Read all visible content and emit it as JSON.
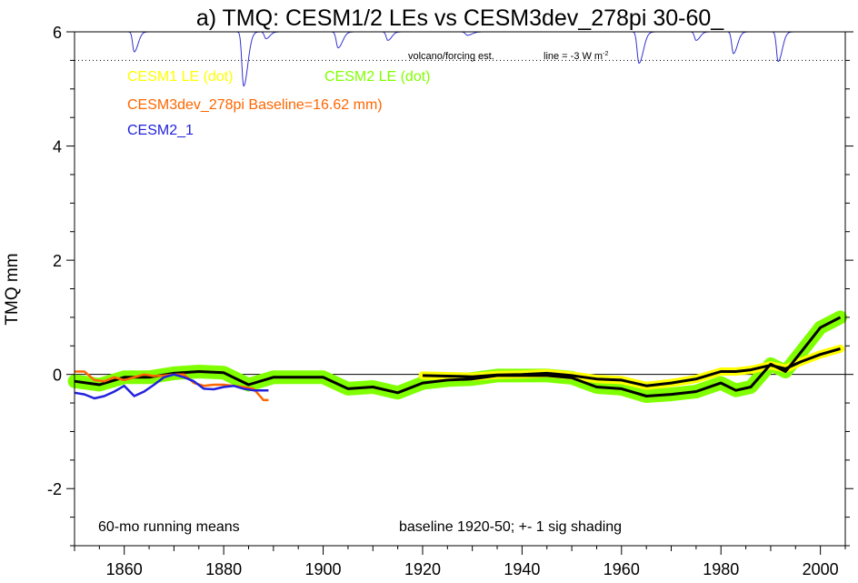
{
  "chart_data": {
    "type": "line",
    "title": "a) TMQ: CESM1/2 LEs vs CESM3dev_278pi 30-60_",
    "ylabel": "TMQ mm",
    "xlabel": "",
    "xlim": [
      1850,
      2005
    ],
    "ylim": [
      -3,
      6
    ],
    "x_ticks": [
      1860,
      1880,
      1900,
      1920,
      1940,
      1960,
      1980,
      2000
    ],
    "y_ticks": [
      -2,
      0,
      2,
      4,
      6
    ],
    "y_tick_labels": [
      "-2",
      "0",
      "2",
      "4",
      "6"
    ],
    "grid": false,
    "annotations": {
      "volcano_label": "volcano/forcing est.",
      "volcano_line": "line = -3 W m",
      "volcano_line_sup": "-2",
      "bottom_left": "60-mo running means",
      "bottom_right": "baseline 1920-50; +- 1 sig shading"
    },
    "legend": [
      {
        "text": "CESM1 LE (dot)",
        "color": "#ffff00"
      },
      {
        "text": "CESM2 LE (dot)",
        "color": "#80ff00"
      },
      {
        "text": "CESM3dev_278pi Baseline=16.62 mm)",
        "color": "#ff6600"
      },
      {
        "text": "CESM2_1",
        "color": "#2222dd"
      }
    ],
    "colors": {
      "cesm1": "#ffff00",
      "cesm2": "#80ff00",
      "cesm3dev": "#ff6600",
      "cesm2_1": "#2222dd",
      "volcano": "#3333cc"
    },
    "volcano": {
      "baseline": 6.0,
      "dotted_level": 5.5,
      "events": [
        {
          "x": 1862,
          "depth": 0.35,
          "width": 1.0
        },
        {
          "x": 1884,
          "depth": 0.95,
          "width": 1.2
        },
        {
          "x": 1888.5,
          "depth": 0.12,
          "width": 1.0
        },
        {
          "x": 1903,
          "depth": 0.28,
          "width": 1.3
        },
        {
          "x": 1913,
          "depth": 0.15,
          "width": 1.0
        },
        {
          "x": 1929,
          "depth": 0.06,
          "width": 1.5
        },
        {
          "x": 1963.5,
          "depth": 0.55,
          "width": 1.3
        },
        {
          "x": 1975,
          "depth": 0.15,
          "width": 1.0
        },
        {
          "x": 1982.5,
          "depth": 0.38,
          "width": 1.1
        },
        {
          "x": 1991.5,
          "depth": 0.52,
          "width": 1.1
        }
      ]
    },
    "series": [
      {
        "name": "CESM2 LE (dot)",
        "role": "cesm2_band",
        "x": [
          1850,
          1855,
          1860,
          1865,
          1870,
          1875,
          1880,
          1885,
          1890,
          1895,
          1900,
          1905,
          1910,
          1915,
          1920,
          1925,
          1930,
          1935,
          1940,
          1945,
          1950,
          1955,
          1960,
          1965,
          1970,
          1975,
          1980,
          1983,
          1986,
          1990,
          1993,
          1996,
          2000,
          2004
        ],
        "values": [
          -0.12,
          -0.18,
          -0.05,
          -0.05,
          0.02,
          0.05,
          0.03,
          -0.18,
          -0.05,
          -0.05,
          -0.05,
          -0.25,
          -0.22,
          -0.32,
          -0.15,
          -0.1,
          -0.08,
          -0.02,
          -0.02,
          -0.02,
          -0.06,
          -0.22,
          -0.25,
          -0.38,
          -0.35,
          -0.3,
          -0.15,
          -0.28,
          -0.22,
          0.18,
          0.05,
          0.38,
          0.82,
          1.0
        ],
        "sigma": 0.09
      },
      {
        "name": "CESM1 LE (dot)",
        "role": "cesm1_band",
        "x": [
          1920,
          1925,
          1930,
          1935,
          1940,
          1945,
          1950,
          1955,
          1960,
          1965,
          1970,
          1975,
          1980,
          1983,
          1986,
          1990,
          1993,
          1996,
          2000,
          2004
        ],
        "values": [
          -0.02,
          -0.03,
          -0.04,
          -0.01,
          0.0,
          0.02,
          -0.02,
          -0.08,
          -0.1,
          -0.2,
          -0.15,
          -0.08,
          0.05,
          0.05,
          0.08,
          0.16,
          0.1,
          0.22,
          0.35,
          0.45
        ],
        "sigma": 0.05
      },
      {
        "name": "CESM3dev_278pi Baseline=16.62 mm)",
        "role": "cesm3dev",
        "x": [
          1850,
          1852,
          1854,
          1856,
          1858,
          1860,
          1862,
          1864,
          1866,
          1868,
          1870,
          1872,
          1874,
          1876,
          1878,
          1880,
          1882,
          1884,
          1886,
          1888,
          1889
        ],
        "values": [
          0.05,
          0.05,
          -0.1,
          -0.12,
          -0.05,
          -0.1,
          -0.05,
          0.0,
          -0.03,
          -0.02,
          0.0,
          0.0,
          -0.15,
          -0.2,
          -0.18,
          -0.18,
          -0.2,
          -0.22,
          -0.25,
          -0.45,
          -0.45
        ]
      },
      {
        "name": "CESM2_1",
        "role": "cesm2_1",
        "x": [
          1850,
          1852,
          1854,
          1856,
          1858,
          1860,
          1862,
          1864,
          1866,
          1868,
          1870,
          1872,
          1874,
          1876,
          1878,
          1880,
          1882,
          1884,
          1886,
          1888,
          1889
        ],
        "values": [
          -0.32,
          -0.35,
          -0.42,
          -0.38,
          -0.3,
          -0.2,
          -0.38,
          -0.3,
          -0.18,
          -0.05,
          0.0,
          -0.05,
          -0.12,
          -0.25,
          -0.26,
          -0.22,
          -0.2,
          -0.25,
          -0.28,
          -0.28,
          -0.28
        ]
      }
    ]
  }
}
